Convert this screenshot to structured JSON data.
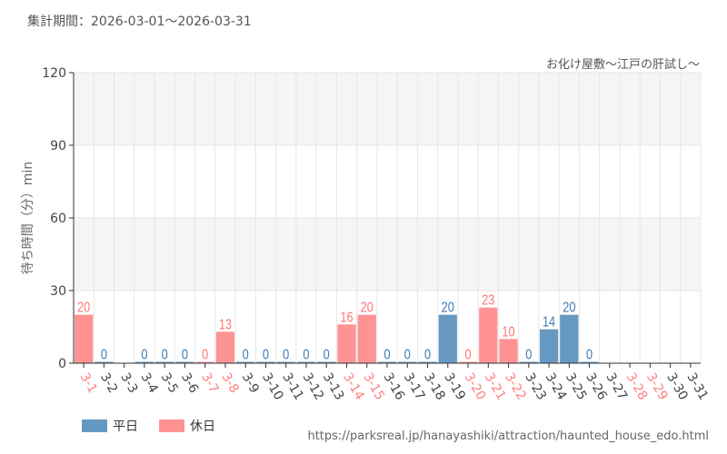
{
  "header": {
    "period": "集計期間：2026-03-01～2026-03-31",
    "attraction": "お化け屋敷～江戸の肝試し～"
  },
  "footer": {
    "url": "https://parksreal.jp/hanayashiki/attraction/haunted_house_edo.html"
  },
  "colors": {
    "weekday": "#6699c2",
    "holiday": "#ff9393",
    "weekday_text": "#3d7ab0",
    "holiday_text": "#ff7373"
  },
  "chart_data": {
    "type": "bar",
    "ylabel": "待ち時間（分）min",
    "ylim": [
      0,
      120
    ],
    "yticks": [
      0,
      30,
      60,
      90,
      120
    ],
    "grid": true,
    "legend_position": "bottom-left",
    "legend": [
      {
        "name": "平日",
        "key": "weekday"
      },
      {
        "name": "休日",
        "key": "holiday"
      }
    ],
    "categories": [
      "3-1",
      "3-2",
      "3-3",
      "3-4",
      "3-5",
      "3-6",
      "3-7",
      "3-8",
      "3-9",
      "3-10",
      "3-11",
      "3-12",
      "3-13",
      "3-14",
      "3-15",
      "3-16",
      "3-17",
      "3-18",
      "3-19",
      "3-20",
      "3-21",
      "3-22",
      "3-23",
      "3-24",
      "3-25",
      "3-26",
      "3-27",
      "3-28",
      "3-29",
      "3-30",
      "3-31"
    ],
    "holiday": [
      true,
      false,
      false,
      false,
      false,
      false,
      true,
      true,
      false,
      false,
      false,
      false,
      false,
      true,
      true,
      false,
      false,
      false,
      false,
      true,
      true,
      true,
      false,
      false,
      false,
      false,
      false,
      true,
      true,
      false,
      false
    ],
    "values": [
      20,
      0,
      null,
      0,
      0,
      0,
      0,
      13,
      0,
      0,
      0,
      0,
      0,
      16,
      20,
      0,
      0,
      0,
      20,
      0,
      23,
      10,
      0,
      14,
      20,
      0,
      null,
      null,
      null,
      null,
      null
    ]
  }
}
